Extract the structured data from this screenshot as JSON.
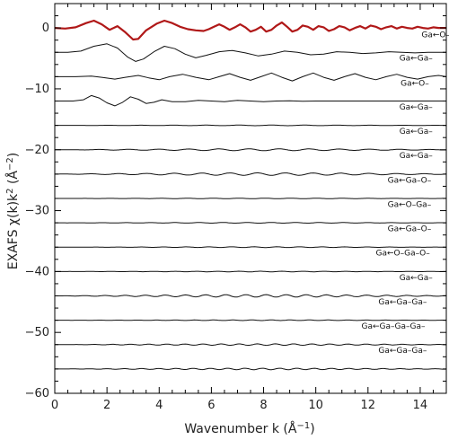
{
  "chart_data": {
    "type": "line",
    "title": "",
    "xlabel": "Wavenumber k (Å",
    "xlabel_sup": "−1",
    "xlabel_close": ")",
    "ylabel": "EXAFS χ(k)k",
    "ylabel_sup1": "2",
    "ylabel_mid": " (Å",
    "ylabel_sup2": "−2",
    "ylabel_close": ")",
    "xlim": [
      0,
      15
    ],
    "ylim": [
      -60,
      4
    ],
    "xticks": [
      0,
      2,
      4,
      6,
      8,
      10,
      12,
      14
    ],
    "yticks": [
      0,
      -10,
      -20,
      -30,
      -40,
      -50,
      -60
    ],
    "yminor_step": 2,
    "xminor_step": 0.5,
    "grid": false,
    "colors": {
      "total": "#b01818",
      "components": "#111111"
    },
    "series": [
      {
        "offset": 0,
        "label": "",
        "color": "#b01818",
        "width": 2.2,
        "points": [
          [
            0,
            0
          ],
          [
            0.4,
            -0.1
          ],
          [
            0.8,
            0.1
          ],
          [
            1.2,
            0.8
          ],
          [
            1.5,
            1.2
          ],
          [
            1.8,
            0.6
          ],
          [
            2.1,
            -0.3
          ],
          [
            2.4,
            0.3
          ],
          [
            2.7,
            -0.7
          ],
          [
            3.0,
            -1.9
          ],
          [
            3.2,
            -1.8
          ],
          [
            3.5,
            -0.4
          ],
          [
            3.9,
            0.7
          ],
          [
            4.2,
            1.2
          ],
          [
            4.5,
            0.8
          ],
          [
            4.8,
            0.2
          ],
          [
            5.1,
            -0.2
          ],
          [
            5.4,
            -0.4
          ],
          [
            5.7,
            -0.5
          ],
          [
            5.9,
            -0.2
          ],
          [
            6.1,
            0.2
          ],
          [
            6.3,
            0.6
          ],
          [
            6.5,
            0.2
          ],
          [
            6.7,
            -0.3
          ],
          [
            6.9,
            0.1
          ],
          [
            7.1,
            0.6
          ],
          [
            7.3,
            0.1
          ],
          [
            7.5,
            -0.6
          ],
          [
            7.7,
            -0.3
          ],
          [
            7.9,
            0.2
          ],
          [
            8.1,
            -0.6
          ],
          [
            8.3,
            -0.3
          ],
          [
            8.5,
            0.4
          ],
          [
            8.7,
            0.9
          ],
          [
            8.9,
            0.2
          ],
          [
            9.1,
            -0.6
          ],
          [
            9.3,
            -0.3
          ],
          [
            9.5,
            0.4
          ],
          [
            9.7,
            0.2
          ],
          [
            9.9,
            -0.3
          ],
          [
            10.1,
            0.3
          ],
          [
            10.3,
            0.1
          ],
          [
            10.5,
            -0.5
          ],
          [
            10.7,
            -0.2
          ],
          [
            10.9,
            0.3
          ],
          [
            11.1,
            0.1
          ],
          [
            11.3,
            -0.4
          ],
          [
            11.5,
            0.0
          ],
          [
            11.7,
            0.3
          ],
          [
            11.9,
            -0.1
          ],
          [
            12.1,
            0.4
          ],
          [
            12.3,
            0.2
          ],
          [
            12.5,
            -0.2
          ],
          [
            12.7,
            0.1
          ],
          [
            12.9,
            0.3
          ],
          [
            13.1,
            -0.1
          ],
          [
            13.3,
            0.2
          ],
          [
            13.5,
            0.0
          ],
          [
            13.7,
            -0.1
          ],
          [
            13.9,
            0.2
          ],
          [
            14.1,
            0.0
          ],
          [
            14.3,
            -0.1
          ],
          [
            14.5,
            0.1
          ],
          [
            14.7,
            0.0
          ],
          [
            15.0,
            0.0
          ]
        ]
      },
      {
        "offset": -4,
        "label": "Ga←O–",
        "label_x": 14.05,
        "label_y": -1.5,
        "color": "#111111",
        "width": 1,
        "points": [
          [
            0,
            -4
          ],
          [
            0.5,
            -4
          ],
          [
            1.0,
            -3.8
          ],
          [
            1.5,
            -3.0
          ],
          [
            2.0,
            -2.6
          ],
          [
            2.4,
            -3.3
          ],
          [
            2.8,
            -4.8
          ],
          [
            3.1,
            -5.5
          ],
          [
            3.4,
            -5.1
          ],
          [
            3.8,
            -3.9
          ],
          [
            4.2,
            -3.0
          ],
          [
            4.6,
            -3.4
          ],
          [
            5.0,
            -4.3
          ],
          [
            5.4,
            -4.9
          ],
          [
            5.8,
            -4.5
          ],
          [
            6.3,
            -3.9
          ],
          [
            6.8,
            -3.7
          ],
          [
            7.3,
            -4.1
          ],
          [
            7.8,
            -4.6
          ],
          [
            8.3,
            -4.3
          ],
          [
            8.8,
            -3.8
          ],
          [
            9.3,
            -4.0
          ],
          [
            9.8,
            -4.4
          ],
          [
            10.3,
            -4.3
          ],
          [
            10.8,
            -3.9
          ],
          [
            11.3,
            -4.0
          ],
          [
            11.8,
            -4.2
          ],
          [
            12.3,
            -4.1
          ],
          [
            12.8,
            -3.9
          ],
          [
            13.3,
            -4.0
          ],
          [
            13.8,
            -4.1
          ],
          [
            14.3,
            -4.0
          ],
          [
            15,
            -4.0
          ]
        ]
      },
      {
        "offset": -8,
        "label": "Ga←Ga–",
        "label_x": 13.2,
        "label_y": -5.4,
        "color": "#111111",
        "width": 1,
        "points": [
          [
            0,
            -8
          ],
          [
            0.8,
            -8
          ],
          [
            1.4,
            -7.9
          ],
          [
            1.8,
            -8.1
          ],
          [
            2.3,
            -8.4
          ],
          [
            2.7,
            -8.1
          ],
          [
            3.2,
            -7.8
          ],
          [
            3.6,
            -8.2
          ],
          [
            4.0,
            -8.5
          ],
          [
            4.4,
            -8.0
          ],
          [
            4.9,
            -7.6
          ],
          [
            5.4,
            -8.1
          ],
          [
            5.9,
            -8.5
          ],
          [
            6.3,
            -8.0
          ],
          [
            6.7,
            -7.5
          ],
          [
            7.1,
            -8.1
          ],
          [
            7.5,
            -8.6
          ],
          [
            7.9,
            -8.0
          ],
          [
            8.3,
            -7.4
          ],
          [
            8.7,
            -8.1
          ],
          [
            9.1,
            -8.7
          ],
          [
            9.5,
            -8.0
          ],
          [
            9.9,
            -7.4
          ],
          [
            10.3,
            -8.1
          ],
          [
            10.7,
            -8.6
          ],
          [
            11.1,
            -8.0
          ],
          [
            11.5,
            -7.5
          ],
          [
            11.9,
            -8.1
          ],
          [
            12.3,
            -8.5
          ],
          [
            12.7,
            -8.0
          ],
          [
            13.1,
            -7.6
          ],
          [
            13.5,
            -8.1
          ],
          [
            13.9,
            -8.4
          ],
          [
            14.3,
            -8.0
          ],
          [
            14.7,
            -7.8
          ],
          [
            15,
            -8.0
          ]
        ]
      },
      {
        "offset": -12,
        "label": "Ga←O–",
        "label_x": 13.25,
        "label_y": -9.5,
        "color": "#111111",
        "width": 1,
        "points": [
          [
            0,
            -12
          ],
          [
            0.7,
            -12.0
          ],
          [
            1.1,
            -11.8
          ],
          [
            1.4,
            -11.1
          ],
          [
            1.7,
            -11.5
          ],
          [
            2.0,
            -12.3
          ],
          [
            2.3,
            -12.8
          ],
          [
            2.6,
            -12.2
          ],
          [
            2.9,
            -11.3
          ],
          [
            3.2,
            -11.7
          ],
          [
            3.5,
            -12.4
          ],
          [
            3.8,
            -12.2
          ],
          [
            4.1,
            -11.8
          ],
          [
            4.5,
            -12.1
          ],
          [
            5.0,
            -12.1
          ],
          [
            5.5,
            -11.9
          ],
          [
            6.0,
            -12.0
          ],
          [
            6.5,
            -12.1
          ],
          [
            7.0,
            -11.9
          ],
          [
            7.5,
            -12.0
          ],
          [
            8.0,
            -12.1
          ],
          [
            8.5,
            -12.0
          ],
          [
            9.0,
            -11.95
          ],
          [
            9.5,
            -12.05
          ],
          [
            10,
            -12.0
          ],
          [
            11,
            -12.0
          ],
          [
            12,
            -12.0
          ],
          [
            13,
            -12.0
          ],
          [
            15,
            -12.0
          ]
        ]
      },
      {
        "offset": -16,
        "label": "Ga←Ga–",
        "label_x": 13.2,
        "label_y": -13.4,
        "color": "#111111",
        "width": 1,
        "wiggle": 0.05
      },
      {
        "offset": -20,
        "label": "Ga←Ga–",
        "label_x": 13.2,
        "label_y": -17.4,
        "color": "#111111",
        "width": 1,
        "wiggle": 0.15
      },
      {
        "offset": -24,
        "label": "Ga←Ga–",
        "label_x": 13.2,
        "label_y": -21.4,
        "color": "#111111",
        "width": 1,
        "wiggle": 0.2
      },
      {
        "offset": -28,
        "label": "Ga←Ga–O–",
        "label_x": 12.75,
        "label_y": -25.4,
        "color": "#111111",
        "width": 1,
        "wiggle": 0.04
      },
      {
        "offset": -32,
        "label": "Ga←O–Ga–",
        "label_x": 12.75,
        "label_y": -29.4,
        "color": "#111111",
        "width": 1,
        "wiggle": 0.06
      },
      {
        "offset": -36,
        "label": "Ga←Ga–O–",
        "label_x": 12.75,
        "label_y": -33.4,
        "color": "#111111",
        "width": 1,
        "wiggle": 0.06
      },
      {
        "offset": -40,
        "label": "Ga←O–Ga–O–",
        "label_x": 12.3,
        "label_y": -37.4,
        "color": "#111111",
        "width": 1,
        "wiggle": 0.05
      },
      {
        "offset": -44,
        "label": "Ga←Ga–",
        "label_x": 13.2,
        "label_y": -41.4,
        "color": "#111111",
        "width": 1,
        "wiggle": 0.2
      },
      {
        "offset": -48,
        "label": "Ga←Ga–Ga–",
        "label_x": 12.4,
        "label_y": -45.4,
        "color": "#111111",
        "width": 1,
        "wiggle": 0.05
      },
      {
        "offset": -52,
        "label": "Ga←Ga–Ga–Ga–",
        "label_x": 11.75,
        "label_y": -49.4,
        "color": "#111111",
        "width": 1,
        "wiggle": 0.12
      },
      {
        "offset": -56,
        "label": "Ga←Ga–Ga–",
        "label_x": 12.4,
        "label_y": -53.4,
        "color": "#111111",
        "width": 1,
        "wiggle": 0.12
      }
    ]
  }
}
